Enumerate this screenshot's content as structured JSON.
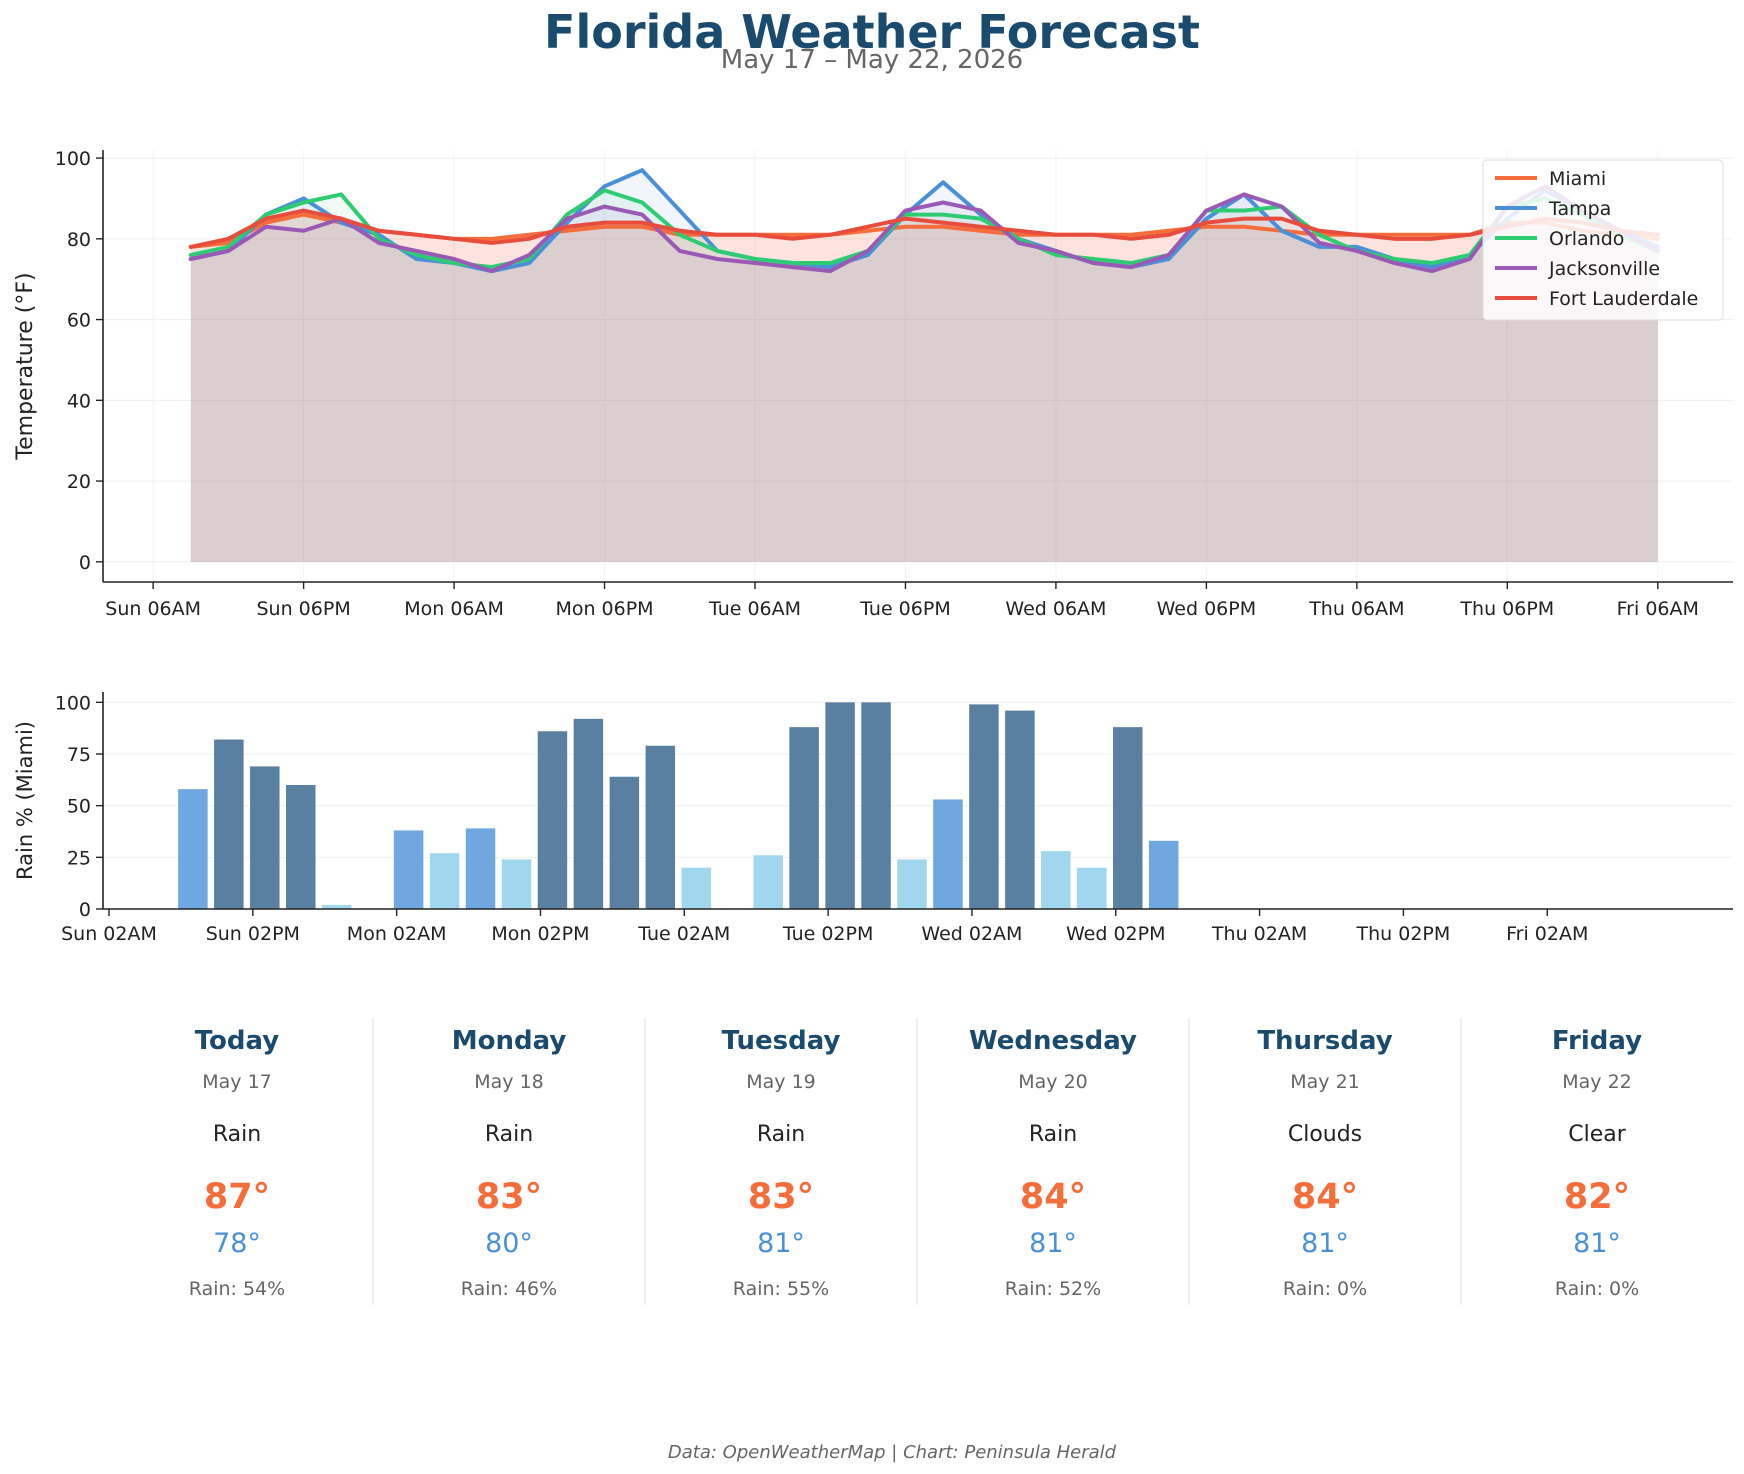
{
  "header": {
    "title": "Florida Weather Forecast",
    "subtitle": "May 17 – May 22, 2026"
  },
  "chart_data": [
    {
      "type": "line",
      "ylabel": "Temperature (°F)",
      "ylim": [
        -5,
        102
      ],
      "yticks": [
        0,
        20,
        40,
        60,
        80,
        100
      ],
      "x_ticks": [
        {
          "label": "Sun 06AM",
          "t": 0
        },
        {
          "label": "Sun 06PM",
          "t": 12
        },
        {
          "label": "Mon 06AM",
          "t": 24
        },
        {
          "label": "Mon 06PM",
          "t": 36
        },
        {
          "label": "Tue 06AM",
          "t": 48
        },
        {
          "label": "Tue 06PM",
          "t": 60
        },
        {
          "label": "Wed 06AM",
          "t": 72
        },
        {
          "label": "Wed 06PM",
          "t": 84
        },
        {
          "label": "Thu 06AM",
          "t": 96
        },
        {
          "label": "Thu 06PM",
          "t": 108
        },
        {
          "label": "Fri 06AM",
          "t": 120
        }
      ],
      "x": [
        3,
        6,
        9,
        12,
        15,
        18,
        21,
        24,
        27,
        30,
        33,
        36,
        39,
        42,
        45,
        48,
        51,
        54,
        57,
        60,
        63,
        66,
        69,
        72,
        75,
        78,
        81,
        84,
        87,
        90,
        93,
        96,
        99,
        102,
        105,
        108,
        111,
        114,
        117,
        120
      ],
      "legend_position": "upper-right",
      "grid": true,
      "series": [
        {
          "name": "Miami",
          "color": "#f46d3a",
          "values": [
            78,
            79,
            84,
            86,
            84,
            82,
            81,
            80,
            80,
            81,
            82,
            83,
            83,
            81,
            81,
            81,
            81,
            81,
            82,
            83,
            83,
            82,
            81,
            81,
            81,
            81,
            82,
            83,
            83,
            82,
            81,
            81,
            81,
            81,
            81,
            84,
            84,
            82,
            81,
            80
          ]
        },
        {
          "name": "Tampa",
          "color": "#4a90d9",
          "values": [
            75,
            77,
            86,
            90,
            84,
            81,
            75,
            74,
            72,
            74,
            84,
            93,
            97,
            87,
            77,
            75,
            74,
            73,
            76,
            86,
            94,
            86,
            80,
            77,
            74,
            73,
            75,
            85,
            91,
            82,
            78,
            78,
            75,
            73,
            76,
            85,
            92,
            87,
            82,
            78
          ]
        },
        {
          "name": "Orlando",
          "color": "#2ecc71",
          "values": [
            76,
            78,
            86,
            89,
            91,
            80,
            76,
            74,
            73,
            75,
            86,
            92,
            89,
            81,
            77,
            75,
            74,
            74,
            77,
            86,
            86,
            85,
            80,
            76,
            75,
            74,
            76,
            87,
            87,
            88,
            81,
            77,
            75,
            74,
            76,
            88,
            90,
            86,
            81,
            77
          ]
        },
        {
          "name": "Jacksonville",
          "color": "#9b59b6",
          "values": [
            75,
            77,
            83,
            82,
            85,
            79,
            77,
            75,
            72,
            76,
            85,
            88,
            86,
            77,
            75,
            74,
            73,
            72,
            77,
            87,
            89,
            87,
            79,
            77,
            74,
            73,
            76,
            87,
            91,
            88,
            79,
            77,
            74,
            72,
            75,
            88,
            93,
            87,
            82,
            77
          ]
        },
        {
          "name": "Fort Lauderdale",
          "color": "#e74c3c",
          "values": [
            78,
            80,
            85,
            87,
            85,
            82,
            81,
            80,
            79,
            80,
            83,
            84,
            84,
            82,
            81,
            81,
            80,
            81,
            83,
            85,
            84,
            83,
            82,
            81,
            81,
            80,
            81,
            84,
            85,
            85,
            82,
            81,
            80,
            80,
            81,
            83,
            85,
            84,
            82,
            81
          ]
        }
      ]
    },
    {
      "type": "bar",
      "ylabel": "Rain % (Miami)",
      "ylim": [
        0,
        105
      ],
      "yticks": [
        0,
        25,
        50,
        75,
        100
      ],
      "x_ticks": [
        {
          "label": "Sun 02AM",
          "t": 0
        },
        {
          "label": "Sun 02PM",
          "t": 12
        },
        {
          "label": "Mon 02AM",
          "t": 24
        },
        {
          "label": "Mon 02PM",
          "t": 36
        },
        {
          "label": "Tue 02AM",
          "t": 48
        },
        {
          "label": "Tue 02PM",
          "t": 60
        },
        {
          "label": "Wed 02AM",
          "t": 72
        },
        {
          "label": "Wed 02PM",
          "t": 84
        },
        {
          "label": "Thu 02AM",
          "t": 96
        },
        {
          "label": "Thu 02PM",
          "t": 108
        },
        {
          "label": "Fri 02AM",
          "t": 120
        }
      ],
      "x": [
        7,
        10,
        13,
        16,
        19,
        22,
        25,
        28,
        31,
        34,
        37,
        40,
        43,
        46,
        49,
        52,
        55,
        58,
        61,
        64,
        67,
        70,
        73,
        76,
        79,
        82,
        85,
        88,
        91,
        94,
        97,
        100,
        103,
        106,
        109,
        112,
        115,
        118,
        121,
        124
      ],
      "values": [
        58,
        82,
        69,
        60,
        2,
        0,
        38,
        27,
        39,
        24,
        86,
        92,
        64,
        79,
        20,
        0,
        26,
        88,
        100,
        100,
        24,
        53,
        99,
        96,
        28,
        20,
        88,
        33,
        0,
        0,
        0,
        0,
        0,
        0,
        0,
        0,
        0,
        0,
        0,
        0
      ],
      "colors": {
        "high": "#5a80a1",
        "medium": "#6fa8e0",
        "low": "#a0d6ee"
      },
      "grid": true
    }
  ],
  "forecast": [
    {
      "day": "Today",
      "date": "May 17",
      "condition": "Rain",
      "high": "87°",
      "low": "78°",
      "rain": "Rain: 54%"
    },
    {
      "day": "Monday",
      "date": "May 18",
      "condition": "Rain",
      "high": "83°",
      "low": "80°",
      "rain": "Rain: 46%"
    },
    {
      "day": "Tuesday",
      "date": "May 19",
      "condition": "Rain",
      "high": "83°",
      "low": "81°",
      "rain": "Rain: 55%"
    },
    {
      "day": "Wednesday",
      "date": "May 20",
      "condition": "Rain",
      "high": "84°",
      "low": "81°",
      "rain": "Rain: 52%"
    },
    {
      "day": "Thursday",
      "date": "May 21",
      "condition": "Clouds",
      "high": "84°",
      "low": "81°",
      "rain": "Rain: 0%"
    },
    {
      "day": "Friday",
      "date": "May 22",
      "condition": "Clear",
      "high": "82°",
      "low": "81°",
      "rain": "Rain: 0%"
    }
  ],
  "colors": {
    "title": "#1a4a6e",
    "high_temp": "#f46d3a",
    "low_temp": "#4a90d9",
    "muted": "#666666"
  },
  "footer": {
    "credit": "Data: OpenWeatherMap | Chart: Peninsula Herald"
  }
}
